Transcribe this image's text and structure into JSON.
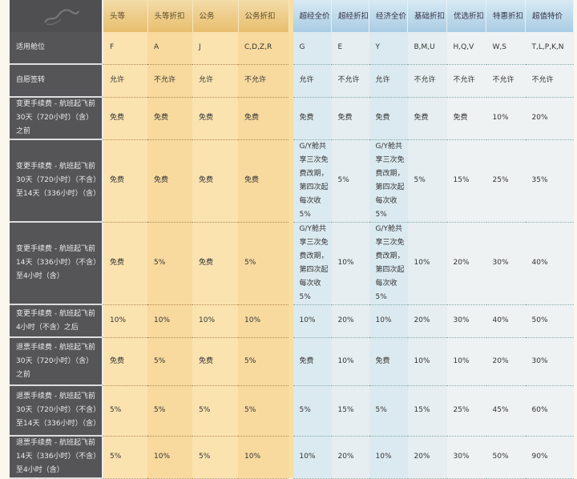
{
  "colors": {
    "label_bg": "#555558",
    "first_class_bg": "#fbe3b0",
    "economy_bg": "#dbeaf0"
  },
  "header": {
    "logo_icon": "cloud-swirl-icon",
    "columns": [
      "头等",
      "头等折扣",
      "公务",
      "公务折扣",
      "超经全价",
      "超经折扣",
      "经济全价",
      "基础折扣",
      "优选折扣",
      "特惠折扣",
      "超值特价"
    ]
  },
  "rows": [
    {
      "label": "适用舱位",
      "cells": [
        "F",
        "A",
        "J",
        "C,D,Z,R",
        "G",
        "E",
        "Y",
        "B,M,U",
        "H,Q,V",
        "W,S",
        "T,L,P,K,N"
      ]
    },
    {
      "label": "自愿签转",
      "cells": [
        "允许",
        "不允许",
        "允许",
        "不允许",
        "允许",
        "不允许",
        "允许",
        "不允许",
        "不允许",
        "不允许",
        "不允许"
      ]
    },
    {
      "label": "变更手续费 - 航班起飞前30天（720小时）（含）之前",
      "cells": [
        "免费",
        "免费",
        "免费",
        "免费",
        "免费",
        "免费",
        "免费",
        "免费",
        "免费",
        "10%",
        "20%"
      ]
    },
    {
      "label": "变更手续费 - 航班起飞前30天（720小时）（不含）至14天（336小时）（含）",
      "cells": [
        "免费",
        "免费",
        "免费",
        "免费",
        "G/Y舱共享三次免费改期，第四次起每次收5%",
        "5%",
        "G/Y舱共享三次免费改期，第四次起每次收5%",
        "5%",
        "15%",
        "25%",
        "35%"
      ]
    },
    {
      "label": "变更手续费 - 航班起飞前14天（336小时）（不含）至4小时（含）",
      "cells": [
        "免费",
        "5%",
        "免费",
        "5%",
        "G/Y舱共享三次免费改期，第四次起每次收5%",
        "10%",
        "G/Y舱共享三次免费改期，第四次起每次收5%",
        "10%",
        "20%",
        "30%",
        "40%"
      ]
    },
    {
      "label": "变更手续费 - 航班起飞前4小时（不含）之后",
      "cells": [
        "10%",
        "10%",
        "10%",
        "10%",
        "10%",
        "20%",
        "10%",
        "20%",
        "30%",
        "40%",
        "50%"
      ]
    },
    {
      "label": "退票手续费 - 航班起飞前30天（720小时）（含）之前",
      "cells": [
        "免费",
        "5%",
        "免费",
        "5%",
        "免费",
        "10%",
        "免费",
        "10%",
        "10%",
        "20%",
        "30%"
      ]
    },
    {
      "label": "退票手续费 - 航班起飞前30天（720小时）（不含）至14天（336小时）（含）",
      "cells": [
        "5%",
        "5%",
        "5%",
        "5%",
        "5%",
        "15%",
        "5%",
        "15%",
        "25%",
        "45%",
        "60%"
      ]
    },
    {
      "label": "退票手续费 - 航班起飞前14天（336小时）（不含）至4小时（含）",
      "cells": [
        "5%",
        "10%",
        "5%",
        "10%",
        "10%",
        "20%",
        "10%",
        "20%",
        "30%",
        "50%",
        "90%"
      ]
    }
  ]
}
